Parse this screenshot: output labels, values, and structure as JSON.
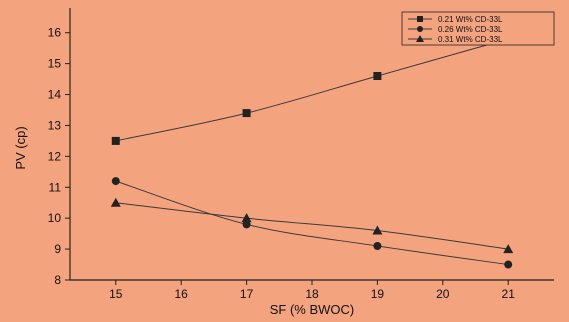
{
  "chart_data": {
    "type": "line",
    "xlabel": "SF (% BWOC)",
    "ylabel": "PV (cp)",
    "xlim": [
      14.3,
      21.7
    ],
    "ylim": [
      8,
      16.8
    ],
    "x_ticks": [
      15,
      16,
      17,
      18,
      19,
      20,
      21
    ],
    "y_ticks": [
      8,
      9,
      10,
      11,
      12,
      13,
      14,
      15,
      16
    ],
    "grid": false,
    "legend_position": "top-right",
    "x": [
      15,
      17,
      19,
      21
    ],
    "series": [
      {
        "name": "0.21 Wt% CD-33L",
        "marker": "square",
        "values": [
          12.5,
          13.4,
          14.6,
          15.8
        ]
      },
      {
        "name": "0.26 Wt% CD-33L",
        "marker": "circle",
        "values": [
          11.2,
          9.8,
          9.1,
          8.5
        ]
      },
      {
        "name": "0.31 Wt% CD-33L",
        "marker": "triangle",
        "values": [
          10.5,
          10.0,
          9.6,
          9.0
        ]
      }
    ],
    "colors": {
      "background": "#f4a37f",
      "ink": "#222222"
    }
  }
}
